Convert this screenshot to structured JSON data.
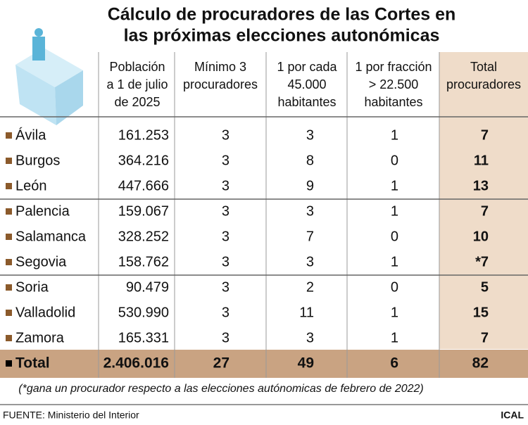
{
  "header": {
    "title": [
      "Cálculo de procuradores de las Cortes en",
      "las próximas elecciones autonómicas"
    ]
  },
  "table": {
    "columns": [
      [
        "Población",
        "a 1 de julio",
        "de 2025"
      ],
      [
        "Mínimo 3",
        "procuradores"
      ],
      [
        "1 por cada",
        "45.000",
        "habitantes"
      ],
      [
        "1 por fracción",
        "> 22.500",
        "habitantes"
      ],
      [
        "Total",
        "procuradores"
      ]
    ],
    "rows": [
      [
        "Ávila",
        "161.253",
        "3",
        "3",
        "1",
        "7"
      ],
      [
        "Burgos",
        "364.216",
        "3",
        "8",
        "0",
        "11"
      ],
      [
        "León",
        "447.666",
        "3",
        "9",
        "1",
        "13"
      ],
      [
        "Palencia",
        "159.067",
        "3",
        "3",
        "1",
        "7"
      ],
      [
        "Salamanca",
        "328.252",
        "3",
        "7",
        "0",
        "10"
      ],
      [
        "Segovia",
        "158.762",
        "3",
        "3",
        "1",
        "*7"
      ],
      [
        "Soria",
        "90.479",
        "3",
        "2",
        "0",
        "5"
      ],
      [
        "Valladolid",
        "530.990",
        "3",
        "11",
        "1",
        "15"
      ],
      [
        "Zamora",
        "165.331",
        "3",
        "3",
        "1",
        "7"
      ]
    ],
    "total": [
      "Total",
      "2.406.016",
      "27",
      "49",
      "6",
      "82"
    ]
  },
  "footnote": "(*gana un procurador respecto a las elecciones autónomicas de febrero de 2022)",
  "footer": {
    "source": "FUENTE: Ministerio del Interior",
    "brand": "ICAL"
  }
}
